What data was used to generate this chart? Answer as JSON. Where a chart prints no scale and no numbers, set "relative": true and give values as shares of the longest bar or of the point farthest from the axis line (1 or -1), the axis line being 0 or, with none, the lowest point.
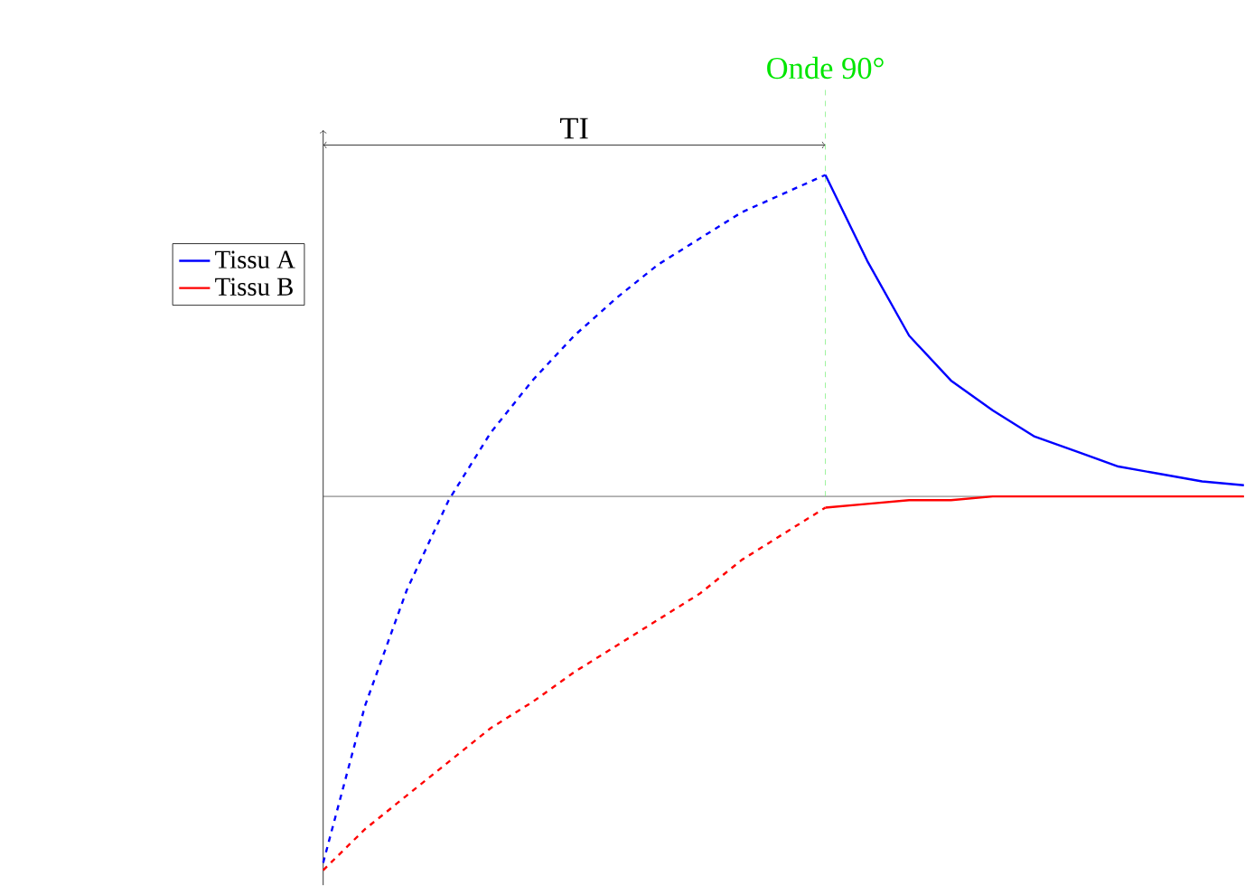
{
  "chart_data": {
    "type": "line",
    "relative": true,
    "legend": "left",
    "annotations": [
      "TI",
      "Onde 90°"
    ],
    "categories": [
      null,
      null,
      null,
      null,
      null,
      null,
      null,
      null,
      null,
      null,
      null,
      null,
      null,
      null,
      null,
      null,
      null,
      null,
      null,
      null,
      null,
      null,
      null
    ],
    "series": [
      {
        "name": "Tissu A",
        "color": "#0000ff",
        "line_style": "solid",
        "values": [
          null,
          null,
          null,
          null,
          null,
          null,
          null,
          null,
          null,
          null,
          null,
          null,
          0.86,
          0.63,
          0.43,
          0.31,
          0.23,
          0.16,
          0.12,
          0.08,
          0.06,
          0.04,
          0.03
        ]
      },
      {
        "name": "Tissu B",
        "color": "#ff0000",
        "line_style": "solid",
        "values": [
          null,
          null,
          null,
          null,
          null,
          null,
          null,
          null,
          null,
          null,
          null,
          null,
          -0.03,
          -0.02,
          -0.01,
          -0.01,
          0,
          0,
          0,
          0,
          0,
          0,
          0
        ]
      },
      {
        "color": "#0000ff",
        "line_style": "dashed",
        "values": [
          -0.98,
          -0.56,
          -0.25,
          -0.01,
          0.17,
          0.31,
          0.43,
          0.53,
          0.62,
          0.69,
          0.76,
          0.81,
          0.86,
          null,
          null,
          null,
          null,
          null,
          null,
          null,
          null,
          null,
          null
        ]
      },
      {
        "color": "#ff0000",
        "line_style": "dashed",
        "values": [
          -1,
          -0.89,
          -0.8,
          -0.71,
          -0.62,
          -0.55,
          -0.47,
          -0.4,
          -0.33,
          -0.26,
          -0.17,
          -0.1,
          -0.03,
          null,
          null,
          null,
          null,
          null,
          null,
          null,
          null,
          null,
          null
        ]
      }
    ]
  }
}
